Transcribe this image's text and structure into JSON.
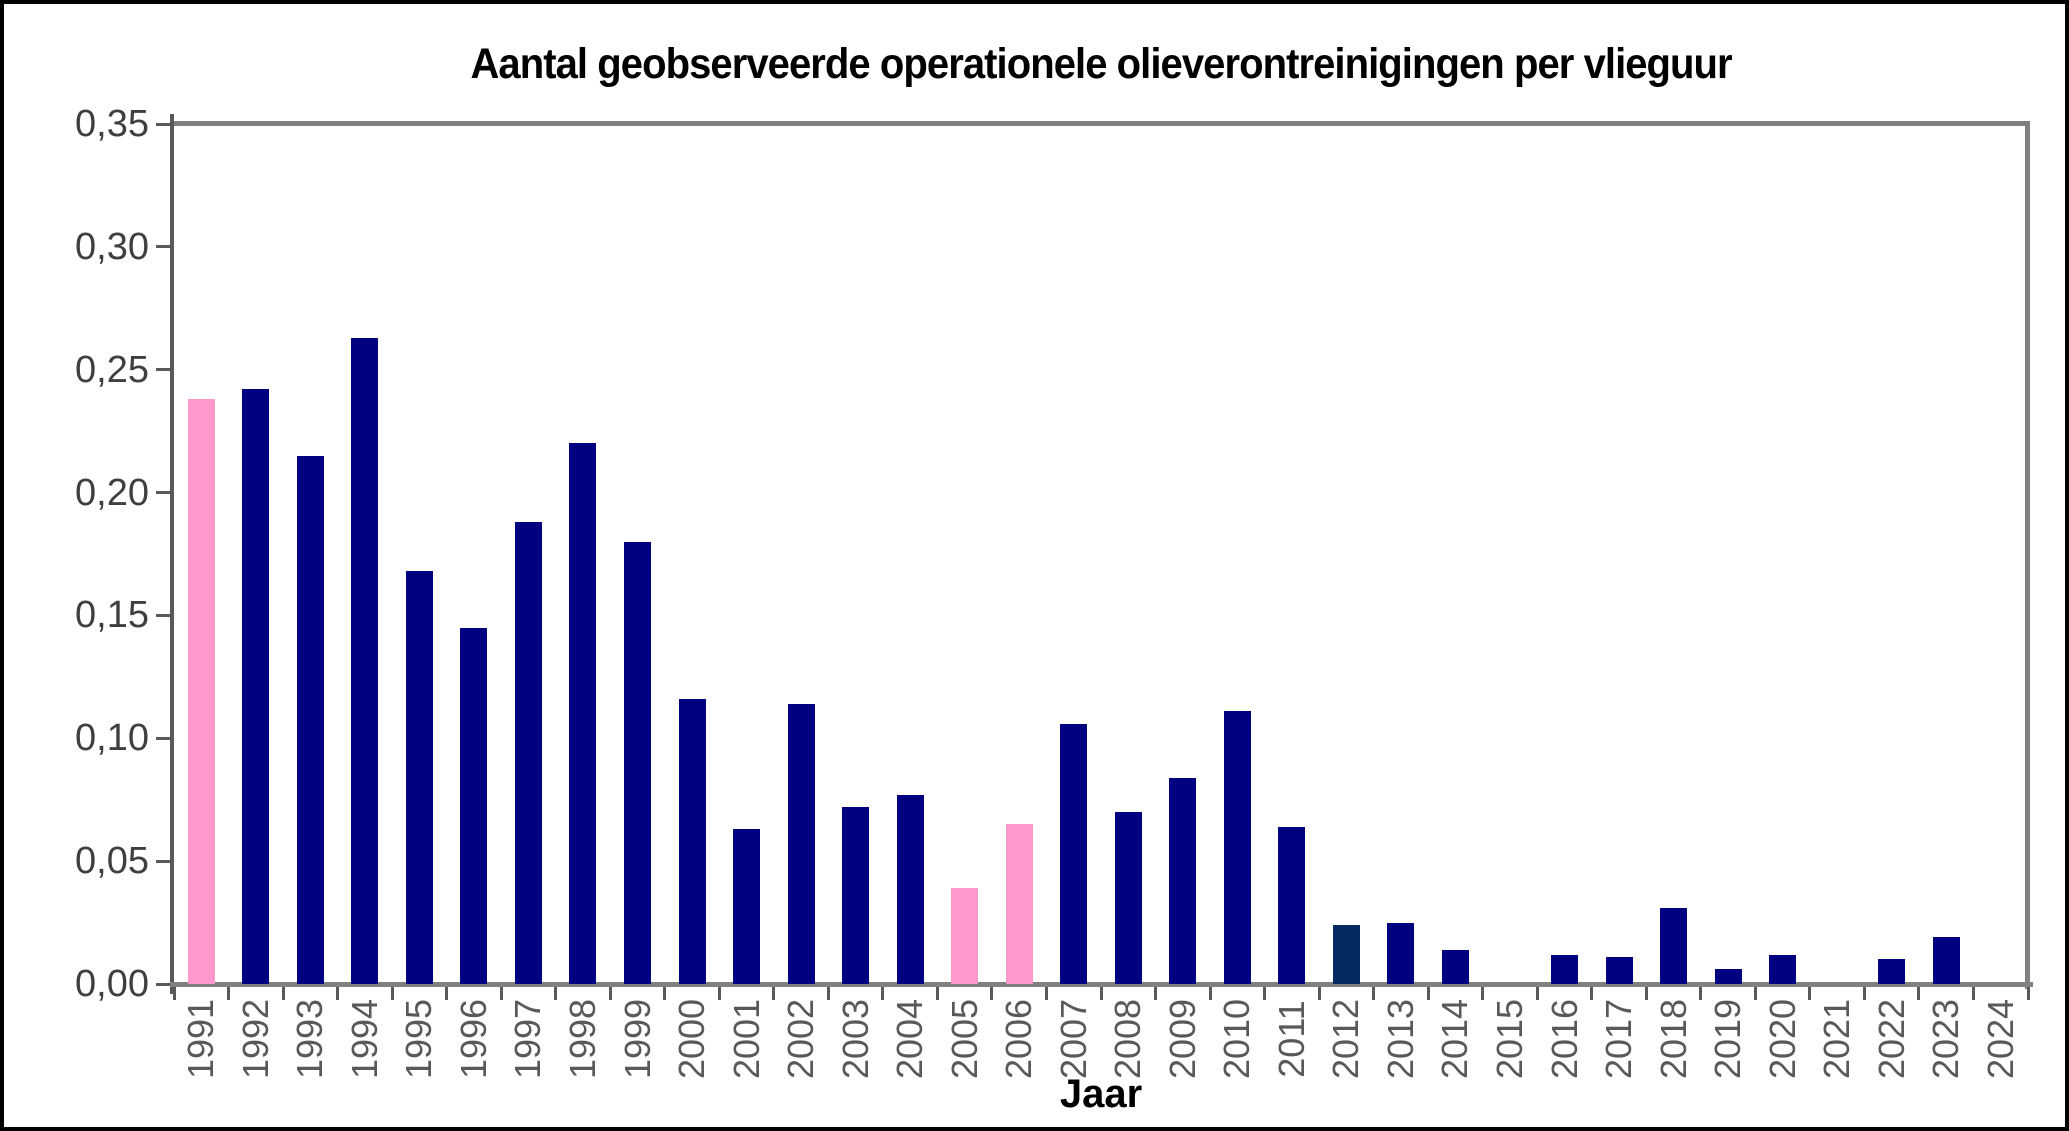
{
  "window": {
    "background": "#FFFFFF",
    "border_color": "#000000"
  },
  "chart_data": {
    "type": "bar",
    "title": "Aantal geobserveerde operationele olieverontreinigingen per vlieguur",
    "xlabel": "Jaar",
    "ylabel": "",
    "ylim": [
      0,
      0.35
    ],
    "ytick_step": 0.05,
    "ytick_labels_top_to_bottom": [
      "0,35",
      "0,30",
      "0,25",
      "0,20",
      "0,15",
      "0,10",
      "0,05",
      "0,00"
    ],
    "decimal_separator": ",",
    "grid": "off",
    "legend": "none",
    "categories": [
      "1991",
      "1992",
      "1993",
      "1994",
      "1995",
      "1996",
      "1997",
      "1998",
      "1999",
      "2000",
      "2001",
      "2002",
      "2003",
      "2004",
      "2005",
      "2006",
      "2007",
      "2008",
      "2009",
      "2010",
      "2011",
      "2012",
      "2013",
      "2014",
      "2015",
      "2016",
      "2017",
      "2018",
      "2019",
      "2020",
      "2021",
      "2022",
      "2023",
      "2024"
    ],
    "series": [
      {
        "name": "Aantal geobserveerde operationele olieverontreinigingen per vlieguur",
        "values": [
          0.238,
          0.242,
          0.215,
          0.263,
          0.168,
          0.145,
          0.188,
          0.22,
          0.18,
          0.116,
          0.063,
          0.114,
          0.072,
          0.077,
          0.039,
          0.065,
          0.106,
          0.07,
          0.084,
          0.111,
          0.064,
          0.024,
          0.025,
          0.014,
          0,
          0.012,
          0.011,
          0.031,
          0.006,
          0.012,
          0,
          0.01,
          0.019,
          0
        ]
      }
    ],
    "bar_styles": [
      "pink",
      "navy",
      "navy",
      "navy",
      "navy",
      "navy",
      "navy",
      "navy",
      "navy",
      "navy",
      "navy",
      "navy",
      "navy",
      "navy",
      "pink",
      "pink",
      "navy",
      "navy",
      "navy",
      "navy",
      "navy",
      "darkblue",
      "navy",
      "navy",
      "navy",
      "navy",
      "navy",
      "navy",
      "navy",
      "navy",
      "navy",
      "navy",
      "navy",
      "navy"
    ],
    "colors": {
      "navy": "#000080",
      "pink": "#FF99CC",
      "darkblue": "#032960",
      "plot_border": "#808080",
      "axis_line": "#595959",
      "tick": "#595959",
      "year_label_text": "#595959",
      "value_label_text": "#3F3F3F",
      "title_text": "#000000"
    }
  }
}
